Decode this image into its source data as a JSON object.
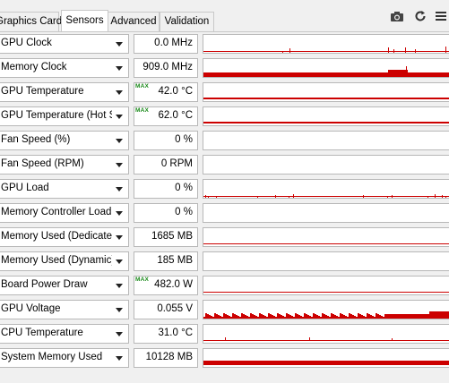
{
  "tabs": [
    {
      "label": "Graphics Card",
      "active": false
    },
    {
      "label": "Sensors",
      "active": true
    },
    {
      "label": "Advanced",
      "active": false
    },
    {
      "label": "Validation",
      "active": false
    }
  ],
  "toolbar": {
    "icons": [
      "camera-icon",
      "refresh-icon",
      "menu-icon"
    ]
  },
  "graph_color": "#cc0000",
  "sensors": [
    {
      "label": "GPU Clock",
      "value": "0.0 MHz",
      "max": "",
      "graph": "spikes-sparse"
    },
    {
      "label": "Memory Clock",
      "value": "909.0 MHz",
      "max": "",
      "graph": "bar-low-with-spike"
    },
    {
      "label": "GPU Temperature",
      "value": "42.0 °C",
      "max": "MAX",
      "graph": "flat-mid"
    },
    {
      "label": "GPU Temperature (Hot Spot)",
      "value": "62.0 °C",
      "max": "MAX",
      "graph": "flat-mid"
    },
    {
      "label": "Fan Speed (%)",
      "value": "0 %",
      "max": "",
      "graph": "empty"
    },
    {
      "label": "Fan Speed (RPM)",
      "value": "0 RPM",
      "max": "",
      "graph": "empty"
    },
    {
      "label": "GPU Load",
      "value": "0 %",
      "max": "",
      "graph": "spikes-sparse-2"
    },
    {
      "label": "Memory Controller Load",
      "value": "0 %",
      "max": "",
      "graph": "empty"
    },
    {
      "label": "Memory Used (Dedicated)",
      "value": "1685 MB",
      "max": "",
      "graph": "flat-thin"
    },
    {
      "label": "Memory Used (Dynamic)",
      "value": "185 MB",
      "max": "",
      "graph": "empty"
    },
    {
      "label": "Board Power Draw",
      "value": "482.0 W",
      "max": "MAX",
      "graph": "flat-low"
    },
    {
      "label": "GPU Voltage",
      "value": "0.055 V",
      "max": "",
      "graph": "dense-noise"
    },
    {
      "label": "CPU Temperature",
      "value": "31.0 °C",
      "max": "",
      "graph": "flat-high"
    },
    {
      "label": "System Memory Used",
      "value": "10128 MB",
      "max": "",
      "graph": "bar-solid"
    }
  ]
}
